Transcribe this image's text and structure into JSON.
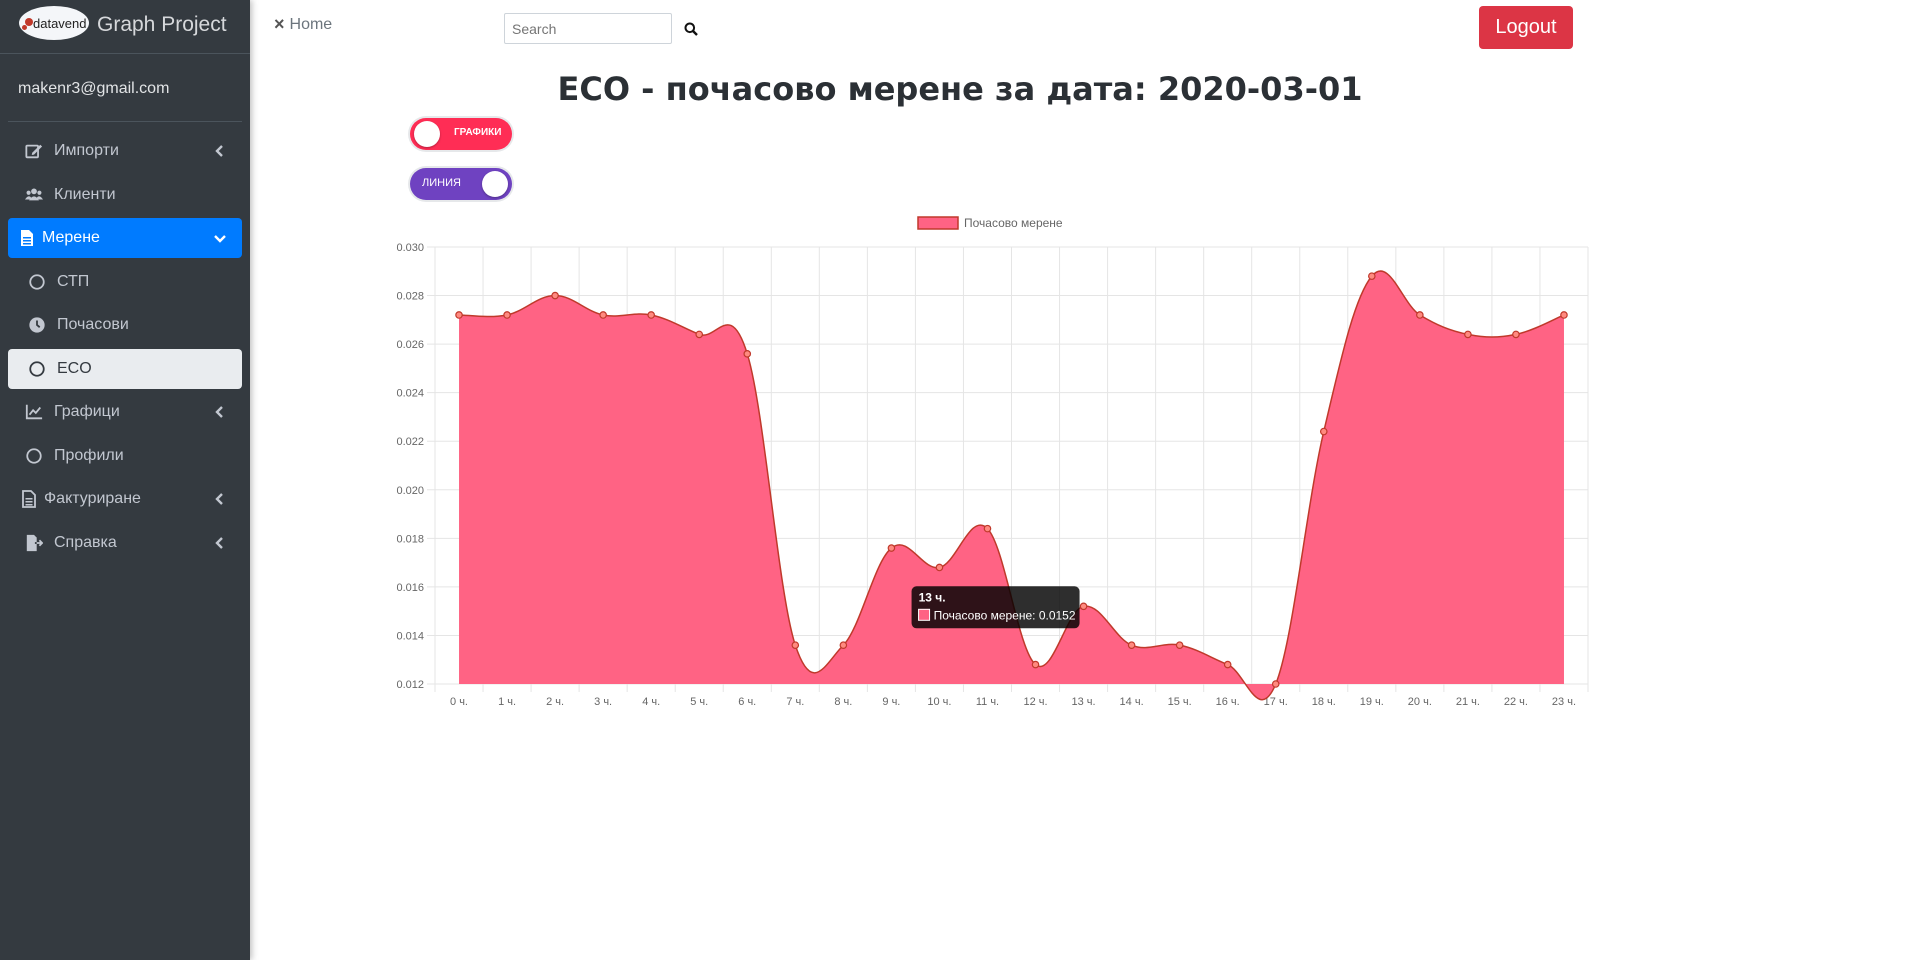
{
  "sidebar": {
    "brand_logo_text": "datavend",
    "brand_name": "Graph Project",
    "user_email": "makenr3@gmail.com",
    "items": [
      {
        "label": "Импорти"
      },
      {
        "label": "Клиенти"
      },
      {
        "label": "Мерене"
      },
      {
        "label": "СТП"
      },
      {
        "label": "Почасови"
      },
      {
        "label": "ECO"
      },
      {
        "label": "Графици"
      },
      {
        "label": "Профили"
      },
      {
        "label": "Фактуриране"
      },
      {
        "label": "Справка"
      }
    ]
  },
  "topbar": {
    "close_icon": "×",
    "home_label": "Home",
    "search_placeholder": "Search",
    "logout_label": "Logout"
  },
  "page": {
    "title": "ECO - почасово мерене за дата: 2020-03-01",
    "toggle_charts_label": "ГРАФИКИ",
    "toggle_line_label": "ЛИНИЯ"
  },
  "colors": {
    "sidebar_bg": "#343a40",
    "active_nav": "#007bff",
    "logout": "#dc3545",
    "series_fill": "#ff6384",
    "series_line": "#c0392b",
    "toggle_charts": "#ff2d55",
    "toggle_line": "#6f42c1"
  },
  "chart_data": {
    "type": "area",
    "title": "",
    "xlabel": "",
    "ylabel": "",
    "legend": "top-center",
    "grid": true,
    "categories": [
      "0 ч.",
      "1 ч.",
      "2 ч.",
      "3 ч.",
      "4 ч.",
      "5 ч.",
      "6 ч.",
      "7 ч.",
      "8 ч.",
      "9 ч.",
      "10 ч.",
      "11 ч.",
      "12 ч.",
      "13 ч.",
      "14 ч.",
      "15 ч.",
      "16 ч.",
      "17 ч.",
      "18 ч.",
      "19 ч.",
      "20 ч.",
      "21 ч.",
      "22 ч.",
      "23 ч."
    ],
    "series": [
      {
        "name": "Почасово мерене",
        "values": [
          0.0272,
          0.0272,
          0.028,
          0.0272,
          0.0272,
          0.0264,
          0.0256,
          0.0136,
          0.0136,
          0.0176,
          0.0168,
          0.0184,
          0.0128,
          0.0152,
          0.0136,
          0.0136,
          0.0128,
          0.012,
          0.0224,
          0.0288,
          0.0272,
          0.0264,
          0.0264,
          0.0272
        ]
      }
    ],
    "ylim": [
      0.012,
      0.03
    ],
    "yticks": [
      "0.012",
      "0.014",
      "0.016",
      "0.018",
      "0.020",
      "0.022",
      "0.024",
      "0.026",
      "0.028",
      "0.030"
    ],
    "tooltip": {
      "index": 13,
      "title": "13 ч.",
      "text": "Почасово мерене: 0.0152"
    }
  }
}
